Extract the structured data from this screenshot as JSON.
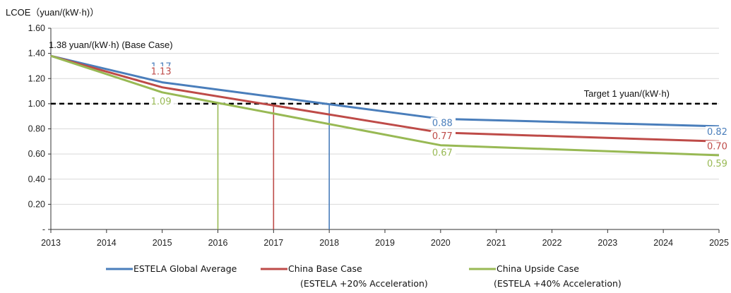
{
  "chart_data": {
    "type": "line",
    "ylabel": "LCOE（yuan/(kW·h)）",
    "x": [
      2013,
      2014,
      2015,
      2016,
      2017,
      2018,
      2019,
      2020,
      2021,
      2022,
      2023,
      2024,
      2025
    ],
    "xlim": [
      2013,
      2025
    ],
    "ylim": [
      0,
      1.6
    ],
    "yticks": [
      0,
      0.2,
      0.4,
      0.6,
      0.8,
      1.0,
      1.2,
      1.4,
      1.6
    ],
    "ytick_labels": [
      "-",
      "0.20",
      "0.40",
      "0.60",
      "0.80",
      "1.00",
      "1.20",
      "1.40",
      "1.60"
    ],
    "grid": true,
    "legend_position": "bottom",
    "series": [
      {
        "name": "ESTELA Global Average",
        "name_line2": "",
        "color": "#4a7ebb",
        "x": [
          2013,
          2015,
          2020,
          2025
        ],
        "y": [
          1.38,
          1.17,
          0.88,
          0.82
        ],
        "labels": [
          {
            "x": 2015,
            "y": 1.17,
            "text": "1.17"
          },
          {
            "x": 2020,
            "y": 0.88,
            "text": "0.88"
          },
          {
            "x": 2025,
            "y": 0.82,
            "text": "0.82"
          }
        ]
      },
      {
        "name": "China Base Case",
        "name_line2": "(ESTELA +20% Acceleration)",
        "color": "#be4b48",
        "x": [
          2013,
          2015,
          2020,
          2025
        ],
        "y": [
          1.38,
          1.13,
          0.77,
          0.7
        ],
        "labels": [
          {
            "x": 2015,
            "y": 1.13,
            "text": "1.13"
          },
          {
            "x": 2020,
            "y": 0.77,
            "text": "0.77"
          },
          {
            "x": 2025,
            "y": 0.7,
            "text": "0.70"
          }
        ]
      },
      {
        "name": "China Upside Case",
        "name_line2": "(ESTELA +40% Acceleration)",
        "color": "#98b954",
        "x": [
          2013,
          2015,
          2020,
          2025
        ],
        "y": [
          1.38,
          1.09,
          0.67,
          0.59
        ],
        "labels": [
          {
            "x": 2015,
            "y": 1.09,
            "text": "1.09"
          },
          {
            "x": 2020,
            "y": 0.67,
            "text": "0.67"
          },
          {
            "x": 2025,
            "y": 0.59,
            "text": "0.59"
          }
        ]
      }
    ],
    "target_line": {
      "y": 1.0,
      "label": "Target 1 yuan/(kW·h)"
    },
    "crossing_lines": [
      {
        "x": 2016,
        "series": "China Upside Case"
      },
      {
        "x": 2017,
        "series": "China Base Case"
      },
      {
        "x": 2018,
        "series": "ESTELA Global Average"
      }
    ],
    "start_annotation": {
      "x": 2013,
      "y": 1.38,
      "text": "1.38 yuan/(kW·h) (Base Case)"
    }
  }
}
